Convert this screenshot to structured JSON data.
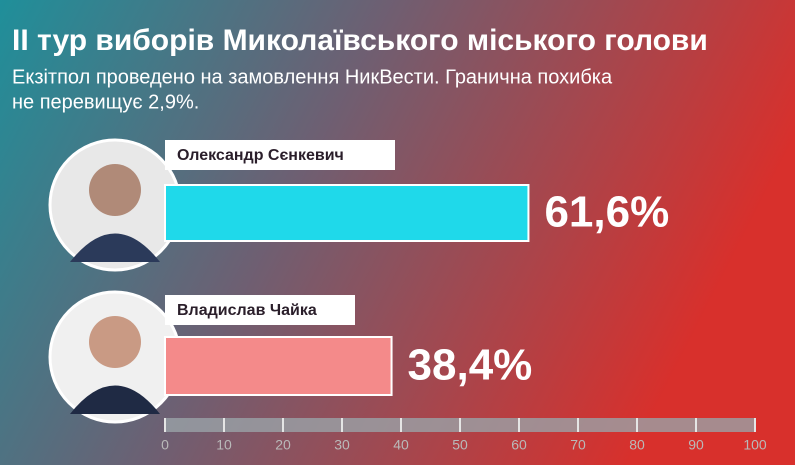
{
  "chart_data": {
    "type": "bar",
    "orientation": "horizontal",
    "title": "ІІ тур виборів Миколаївського міського голови",
    "subtitle": [
      "Екзітпол проведено на замовлення НикВести. Гранична похибка",
      "не перевищує 2,9%."
    ],
    "categories": [
      "Олександр Сєнкевич",
      "Владислав Чайка"
    ],
    "values": [
      61.6,
      38.4
    ],
    "value_labels": [
      "61,6%",
      "38,4%"
    ],
    "colors": [
      "#1fd9ea",
      "#f48a8a"
    ],
    "xlim": [
      0,
      100
    ],
    "xticks": [
      0,
      10,
      20,
      30,
      40,
      50,
      60,
      70,
      80,
      90,
      100
    ]
  }
}
